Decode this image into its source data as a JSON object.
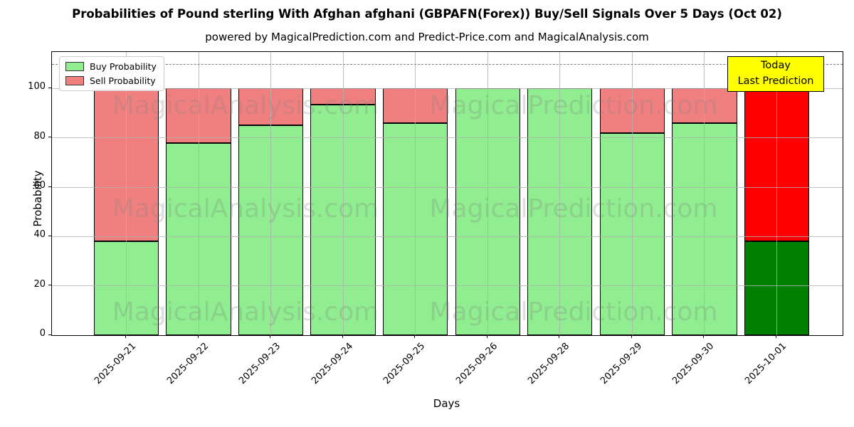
{
  "title": "Probabilities of Pound sterling With Afghan afghani (GBPAFN(Forex)) Buy/Sell Signals Over 5 Days (Oct 02)",
  "subtitle": "powered by MagicalPrediction.com and Predict-Price.com and MagicalAnalysis.com",
  "legend": {
    "buy_label": "Buy Probability",
    "sell_label": "Sell Probability"
  },
  "annotation": {
    "line1": "Today",
    "line2": "Last Prediction"
  },
  "axes": {
    "xlabel": "Days",
    "ylabel": "Probability"
  },
  "watermarks": {
    "left": "MagicalAnalysis.com",
    "right": "MagicalPrediction.com"
  },
  "colors": {
    "buy": "#90EE90",
    "sell": "#F08080",
    "today_buy": "#008000",
    "today_sell": "#FF0000",
    "today_box": "#FFFF00",
    "grid": "#b0b0b0",
    "dashed_line": "#7f7f7f",
    "watermark": "#808080"
  },
  "chart_data": {
    "type": "bar",
    "stacked": true,
    "title": "Probabilities of Pound sterling With Afghan afghani (GBPAFN(Forex)) Buy/Sell Signals Over 5 Days (Oct 02)",
    "xlabel": "Days",
    "ylabel": "Probability",
    "categories": [
      "2025-09-21",
      "2025-09-22",
      "2025-09-23",
      "2025-09-24",
      "2025-09-25",
      "2025-09-26",
      "2025-09-28",
      "2025-09-29",
      "2025-09-30",
      "2025-10-01"
    ],
    "series": [
      {
        "name": "Buy Probability",
        "values": [
          38,
          78,
          85,
          93.5,
          86,
          100,
          100,
          82,
          86,
          38
        ]
      },
      {
        "name": "Sell Probability",
        "values": [
          62,
          22,
          15,
          6.5,
          14,
          0,
          0,
          18,
          14,
          62
        ]
      }
    ],
    "today_index": 9,
    "yticks": [
      0,
      20,
      40,
      60,
      80,
      100
    ],
    "ylim": [
      0,
      115
    ],
    "dashed_line_y": 110,
    "grid": true,
    "legend_position": "upper left"
  }
}
